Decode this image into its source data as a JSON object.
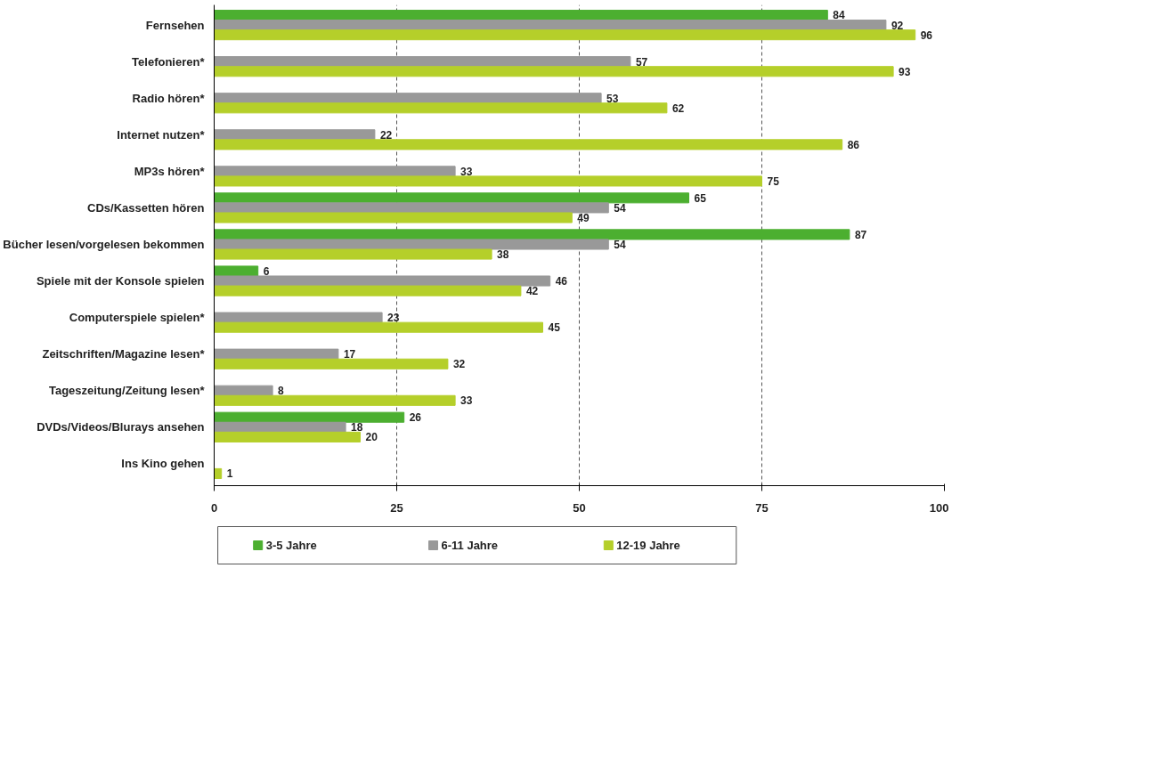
{
  "chart_data": {
    "type": "bar",
    "orientation": "horizontal",
    "categories": [
      "Fernsehen",
      "Telefonieren*",
      "Radio hören*",
      "Internet nutzen*",
      "MP3s hören*",
      "CDs/Kassetten hören",
      "Bücher lesen/vorgelesen bekommen",
      "Spiele mit der Konsole spielen",
      "Computerspiele spielen*",
      "Zeitschriften/Magazine lesen*",
      "Tageszeitung/Zeitung lesen*",
      "DVDs/Videos/Blurays ansehen",
      "Ins Kino gehen"
    ],
    "series": [
      {
        "name": "3-5 Jahre",
        "color": "#4caf30",
        "values": [
          84,
          null,
          null,
          null,
          null,
          65,
          87,
          6,
          null,
          null,
          null,
          26,
          null
        ]
      },
      {
        "name": "6-11 Jahre",
        "color": "#999999",
        "values": [
          92,
          57,
          53,
          22,
          33,
          54,
          54,
          46,
          23,
          17,
          8,
          18,
          null
        ]
      },
      {
        "name": "12-19 Jahre",
        "color": "#b5cf2a",
        "values": [
          96,
          93,
          62,
          86,
          75,
          49,
          38,
          42,
          45,
          32,
          33,
          20,
          1
        ]
      }
    ],
    "xlim": [
      0,
      100
    ],
    "xticks": [
      0,
      25,
      50,
      75,
      100
    ],
    "grid": "x",
    "legend": "bottom",
    "data_labels": true
  }
}
